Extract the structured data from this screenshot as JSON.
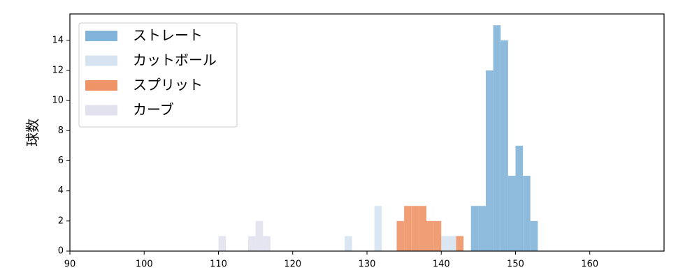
{
  "chart_data": {
    "type": "histogram",
    "y_label": "球数",
    "xlim": [
      90,
      170
    ],
    "ylim": [
      0,
      15.75
    ],
    "xticks": [
      90,
      100,
      110,
      120,
      130,
      140,
      150,
      160
    ],
    "yticks": [
      0,
      2,
      4,
      6,
      8,
      10,
      12,
      14
    ],
    "legend": "upper left",
    "series": [
      {
        "name": "ストレート",
        "color": "#82b3d8",
        "bins": [
          144,
          145,
          146,
          147,
          148,
          149,
          150,
          151,
          152,
          153
        ],
        "values": [
          3,
          3,
          12,
          15,
          14,
          5,
          7,
          5,
          2
        ]
      },
      {
        "name": "カットボール",
        "color": "#d6e4f2",
        "bins": [
          127,
          128,
          129,
          130,
          131,
          132,
          133,
          134,
          135,
          136,
          137,
          138,
          139,
          140,
          141,
          142
        ],
        "values": [
          1,
          0,
          0,
          0,
          3,
          0,
          0,
          0,
          0,
          0,
          0,
          0,
          0,
          1,
          1
        ]
      },
      {
        "name": "スプリット",
        "color": "#ee9467",
        "bins": [
          134,
          135,
          136,
          137,
          138,
          139,
          140,
          141,
          142,
          143
        ],
        "values": [
          2,
          3,
          3,
          3,
          2,
          2,
          0,
          0,
          1
        ]
      },
      {
        "name": "カーブ",
        "color": "#e2e2ef",
        "bins": [
          110,
          111,
          112,
          113,
          114,
          115,
          116,
          117
        ],
        "values": [
          1,
          0,
          0,
          0,
          1,
          2,
          1
        ]
      }
    ]
  }
}
